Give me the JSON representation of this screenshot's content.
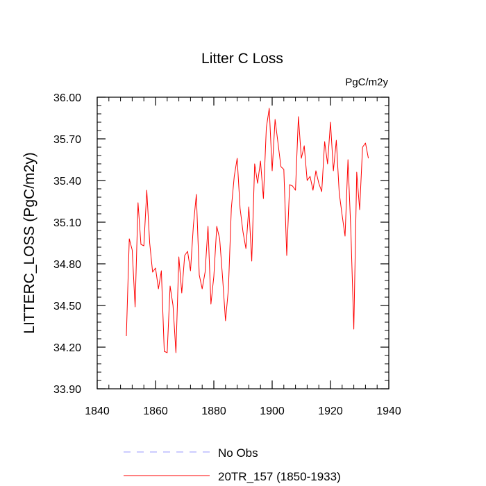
{
  "chart_data": {
    "type": "line",
    "title": "Litter C Loss",
    "units_label": "PgC/m2y",
    "xlabel": "",
    "ylabel": "LITTERC_LOSS  (PgC/m2y)",
    "xlim": [
      1840,
      1940
    ],
    "ylim": [
      33.9,
      36.0
    ],
    "xticks": [
      1840,
      1860,
      1880,
      1900,
      1920,
      1940
    ],
    "xtick_labels": [
      "1840",
      "1860",
      "1880",
      "1900",
      "1920",
      "1940"
    ],
    "xminor_step": 4,
    "yticks": [
      33.9,
      34.2,
      34.5,
      34.8,
      35.1,
      35.4,
      35.7,
      36.0
    ],
    "ytick_labels": [
      "33.90",
      "34.20",
      "34.50",
      "34.80",
      "35.10",
      "35.40",
      "35.70",
      "36.00"
    ],
    "yminor_step": 0.06,
    "grid": false,
    "legend_position": "bottom",
    "legend": [
      {
        "label": "No Obs",
        "color": "#9999ff",
        "dash": "dashed"
      },
      {
        "label": "20TR_157 (1850-1933)",
        "color": "#ff0000",
        "dash": "solid"
      }
    ],
    "series": [
      {
        "name": "20TR_157 (1850-1933)",
        "color": "#ff0000",
        "x": [
          1850,
          1851,
          1852,
          1853,
          1854,
          1855,
          1856,
          1857,
          1858,
          1859,
          1860,
          1861,
          1862,
          1863,
          1864,
          1865,
          1866,
          1867,
          1868,
          1869,
          1870,
          1871,
          1872,
          1873,
          1874,
          1875,
          1876,
          1877,
          1878,
          1879,
          1880,
          1881,
          1882,
          1883,
          1884,
          1885,
          1886,
          1887,
          1888,
          1889,
          1890,
          1891,
          1892,
          1893,
          1894,
          1895,
          1896,
          1897,
          1898,
          1899,
          1900,
          1901,
          1902,
          1903,
          1904,
          1905,
          1906,
          1907,
          1908,
          1909,
          1910,
          1911,
          1912,
          1913,
          1914,
          1915,
          1916,
          1917,
          1918,
          1919,
          1920,
          1921,
          1922,
          1923,
          1924,
          1925,
          1926,
          1927,
          1928,
          1929,
          1930,
          1931,
          1932,
          1933
        ],
        "values": [
          34.28,
          34.98,
          34.9,
          34.49,
          35.24,
          34.94,
          34.93,
          35.33,
          34.95,
          34.74,
          34.77,
          34.62,
          34.75,
          34.17,
          34.16,
          34.64,
          34.5,
          34.16,
          34.85,
          34.59,
          34.86,
          34.89,
          34.75,
          35.08,
          35.3,
          34.72,
          34.62,
          34.74,
          35.07,
          34.51,
          34.71,
          35.07,
          34.98,
          34.7,
          34.39,
          34.62,
          35.2,
          35.43,
          35.56,
          35.2,
          35.03,
          34.91,
          35.21,
          34.82,
          35.52,
          35.38,
          35.54,
          35.27,
          35.78,
          35.92,
          35.47,
          35.84,
          35.67,
          35.5,
          35.48,
          34.86,
          35.37,
          35.36,
          35.33,
          35.86,
          35.56,
          35.65,
          35.4,
          35.43,
          35.33,
          35.47,
          35.38,
          35.32,
          35.68,
          35.52,
          35.82,
          35.47,
          35.69,
          35.31,
          35.15,
          35.0,
          35.55,
          35.03,
          34.33,
          35.46,
          35.19,
          35.64,
          35.67,
          35.56
        ]
      }
    ]
  }
}
